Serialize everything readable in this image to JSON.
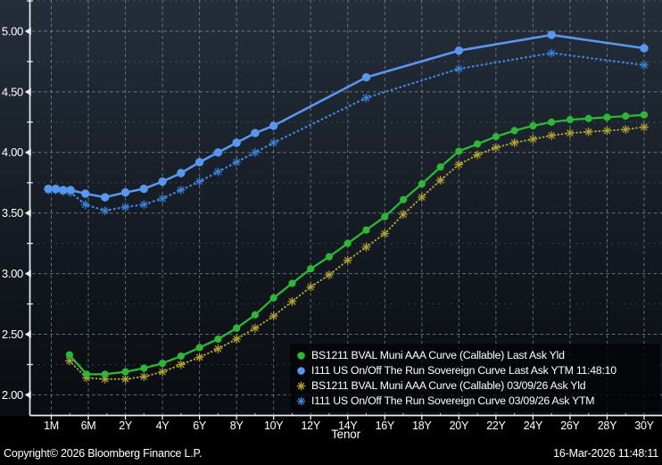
{
  "footer": {
    "copyright": "Copyright© 2026 Bloomberg Finance L.P.",
    "datetime": "16-Mar-2026 11:48:11"
  },
  "colors": {
    "bg_top": "#242e3a",
    "bg_mid": "#151b23",
    "bg_bottom": "#090c10",
    "grid": "#aab2ba",
    "axis": "#e8edf2",
    "text": "#ffffff",
    "legend_bg": "rgba(2,4,8,0.8)",
    "footer_bg": "#000000"
  },
  "chart_data": {
    "type": "line",
    "title": "",
    "xlabel": "Tenor",
    "ylabel": "",
    "x_ticks": [
      "1M",
      "6M",
      "2Y",
      "4Y",
      "6Y",
      "8Y",
      "10Y",
      "12Y",
      "14Y",
      "16Y",
      "18Y",
      "20Y",
      "22Y",
      "24Y",
      "26Y",
      "28Y",
      "30Y"
    ],
    "y_ticks": [
      "2.00",
      "2.50",
      "3.00",
      "3.50",
      "4.00",
      "4.50",
      "5.00"
    ],
    "y_minor_step": 0.25,
    "ylim": [
      1.95,
      5.26
    ],
    "grid": "dashed major gridlines, dotted minor gridlines, dark gradient background",
    "legend_position": "bottom-right",
    "x_axis_note": "x values are ordinal tick indices (0 = 1M tick, 16 = 30Y tick); intermediate tenors fall between labeled ticks",
    "point_format": [
      "tenor",
      "x_index",
      "yield_pct"
    ],
    "series": [
      {
        "id": "muni-last",
        "label": "BS1211 BVAL Muni AAA Curve (Callable) Last Ask Yld",
        "color": "#2eb636",
        "marker": "circle",
        "line_style": "solid",
        "points": [
          [
            "3M",
            0.49,
            2.33
          ],
          [
            "6M",
            0.95,
            2.17
          ],
          [
            "1Y",
            1.45,
            2.17
          ],
          [
            "2Y",
            2,
            2.19
          ],
          [
            "3Y",
            2.5,
            2.22
          ],
          [
            "4Y",
            3,
            2.26
          ],
          [
            "5Y",
            3.5,
            2.32
          ],
          [
            "6Y",
            4,
            2.39
          ],
          [
            "7Y",
            4.5,
            2.46
          ],
          [
            "8Y",
            5,
            2.55
          ],
          [
            "9Y",
            5.5,
            2.66
          ],
          [
            "10Y",
            6,
            2.8
          ],
          [
            "11Y",
            6.5,
            2.92
          ],
          [
            "12Y",
            7,
            3.04
          ],
          [
            "13Y",
            7.5,
            3.14
          ],
          [
            "14Y",
            8,
            3.25
          ],
          [
            "15Y",
            8.5,
            3.36
          ],
          [
            "16Y",
            9,
            3.47
          ],
          [
            "17Y",
            9.5,
            3.61
          ],
          [
            "18Y",
            10,
            3.74
          ],
          [
            "19Y",
            10.5,
            3.88
          ],
          [
            "20Y",
            11,
            4.01
          ],
          [
            "21Y",
            11.5,
            4.07
          ],
          [
            "22Y",
            12,
            4.13
          ],
          [
            "23Y",
            12.5,
            4.18
          ],
          [
            "24Y",
            13,
            4.22
          ],
          [
            "25Y",
            13.5,
            4.25
          ],
          [
            "26Y",
            14,
            4.27
          ],
          [
            "27Y",
            14.5,
            4.28
          ],
          [
            "28Y",
            15,
            4.29
          ],
          [
            "29Y",
            15.5,
            4.3
          ],
          [
            "30Y",
            16,
            4.31
          ]
        ]
      },
      {
        "id": "sovereign-last",
        "label": "I111 US On/Off The Run Sovereign Curve Last Ask YTM 11:48:10",
        "color": "#5897f0",
        "marker": "circle",
        "line_style": "solid",
        "points": [
          [
            "1M",
            -0.08,
            3.7
          ],
          [
            "2M",
            0.12,
            3.7
          ],
          [
            "3M",
            0.32,
            3.69
          ],
          [
            "4M",
            0.52,
            3.69
          ],
          [
            "6M",
            0.92,
            3.66
          ],
          [
            "1Y",
            1.45,
            3.63
          ],
          [
            "2Y",
            2,
            3.67
          ],
          [
            "3Y",
            2.5,
            3.7
          ],
          [
            "4Y",
            3,
            3.76
          ],
          [
            "5Y",
            3.5,
            3.83
          ],
          [
            "6Y",
            4,
            3.92
          ],
          [
            "7Y",
            4.5,
            4.0
          ],
          [
            "8Y",
            5,
            4.08
          ],
          [
            "9Y",
            5.5,
            4.16
          ],
          [
            "10Y",
            6,
            4.22
          ],
          [
            "15Y",
            8.5,
            4.62
          ],
          [
            "20Y",
            11,
            4.84
          ],
          [
            "25Y",
            13.5,
            4.97
          ],
          [
            "30Y",
            16,
            4.86
          ]
        ]
      },
      {
        "id": "muni-030926",
        "label": "BS1211 BVAL Muni AAA Curve (Callable) 03/09/26 Ask Yld",
        "color": "#b4a233",
        "marker": "asterisk",
        "line_style": "dotted",
        "points": [
          [
            "3M",
            0.49,
            2.28
          ],
          [
            "6M",
            0.95,
            2.14
          ],
          [
            "1Y",
            1.45,
            2.13
          ],
          [
            "2Y",
            2,
            2.13
          ],
          [
            "3Y",
            2.5,
            2.15
          ],
          [
            "4Y",
            3,
            2.19
          ],
          [
            "5Y",
            3.5,
            2.25
          ],
          [
            "6Y",
            4,
            2.31
          ],
          [
            "7Y",
            4.5,
            2.38
          ],
          [
            "8Y",
            5,
            2.46
          ],
          [
            "9Y",
            5.5,
            2.55
          ],
          [
            "10Y",
            6,
            2.65
          ],
          [
            "11Y",
            6.5,
            2.77
          ],
          [
            "12Y",
            7,
            2.89
          ],
          [
            "13Y",
            7.5,
            2.99
          ],
          [
            "14Y",
            8,
            3.11
          ],
          [
            "15Y",
            8.5,
            3.22
          ],
          [
            "16Y",
            9,
            3.33
          ],
          [
            "17Y",
            9.5,
            3.49
          ],
          [
            "18Y",
            10,
            3.63
          ],
          [
            "19Y",
            10.5,
            3.77
          ],
          [
            "20Y",
            11,
            3.9
          ],
          [
            "21Y",
            11.5,
            3.98
          ],
          [
            "22Y",
            12,
            4.04
          ],
          [
            "23Y",
            12.5,
            4.08
          ],
          [
            "24Y",
            13,
            4.11
          ],
          [
            "25Y",
            13.5,
            4.14
          ],
          [
            "26Y",
            14,
            4.16
          ],
          [
            "27Y",
            14.5,
            4.17
          ],
          [
            "28Y",
            15,
            4.18
          ],
          [
            "29Y",
            15.5,
            4.19
          ],
          [
            "30Y",
            16,
            4.21
          ]
        ]
      },
      {
        "id": "sovereign-030926",
        "label": "I111 US On/Off The Run Sovereign Curve 03/09/26 Ask YTM",
        "color": "#3c82da",
        "marker": "asterisk",
        "line_style": "dotted",
        "points": [
          [
            "1M",
            -0.08,
            3.69
          ],
          [
            "2M",
            0.12,
            3.69
          ],
          [
            "3M",
            0.32,
            3.68
          ],
          [
            "4M",
            0.52,
            3.67
          ],
          [
            "6M",
            0.92,
            3.57
          ],
          [
            "1Y",
            1.45,
            3.52
          ],
          [
            "2Y",
            2,
            3.55
          ],
          [
            "3Y",
            2.5,
            3.57
          ],
          [
            "4Y",
            3,
            3.62
          ],
          [
            "5Y",
            3.5,
            3.69
          ],
          [
            "6Y",
            4,
            3.76
          ],
          [
            "7Y",
            4.5,
            3.84
          ],
          [
            "8Y",
            5,
            3.92
          ],
          [
            "9Y",
            5.5,
            4.0
          ],
          [
            "10Y",
            6,
            4.08
          ],
          [
            "15Y",
            8.5,
            4.45
          ],
          [
            "20Y",
            11,
            4.69
          ],
          [
            "25Y",
            13.5,
            4.82
          ],
          [
            "30Y",
            16,
            4.72
          ]
        ]
      }
    ]
  }
}
